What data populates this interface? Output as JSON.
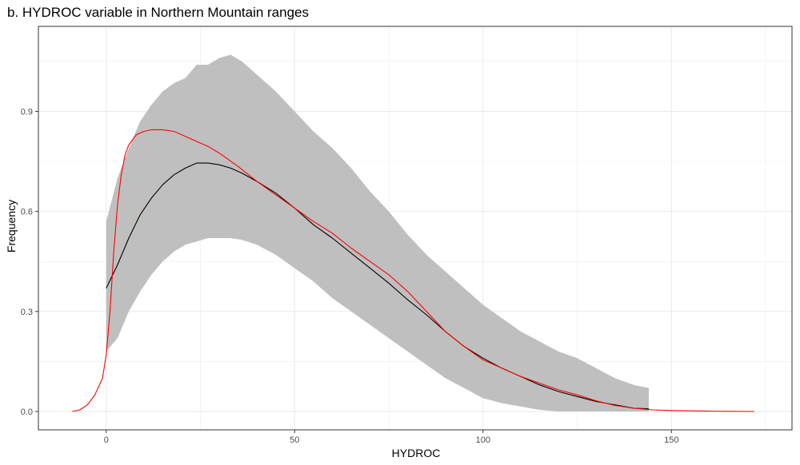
{
  "chart_data": {
    "type": "line",
    "title": "b. HYDROC variable in Northern Mountain ranges",
    "xlabel": "HYDROC",
    "ylabel": "Frequency",
    "xlim": [
      -18,
      182
    ],
    "ylim": [
      -0.055,
      1.155
    ],
    "x_ticks": [
      0,
      50,
      100,
      150
    ],
    "y_ticks": [
      0.0,
      0.3,
      0.6,
      0.9
    ],
    "x_tick_labels": [
      "0",
      "50",
      "100",
      "150"
    ],
    "y_tick_labels": [
      "0.0",
      "0.3",
      "0.6",
      "0.9"
    ],
    "grid": true,
    "colors": {
      "band": "#bfbfbf",
      "mean": "#000000",
      "reference": "#ff0000",
      "grid": "#ebebeb",
      "panel_border": "#333333"
    },
    "band": {
      "x": [
        0,
        3,
        6,
        9,
        12,
        15,
        18,
        21,
        24,
        27,
        30,
        33,
        36,
        40,
        45,
        50,
        55,
        60,
        65,
        70,
        75,
        80,
        85,
        90,
        95,
        100,
        105,
        110,
        115,
        120,
        125,
        130,
        135,
        140,
        144
      ],
      "upper": [
        0.57,
        0.7,
        0.79,
        0.87,
        0.92,
        0.96,
        0.985,
        1.0,
        1.04,
        1.04,
        1.06,
        1.07,
        1.05,
        1.01,
        0.96,
        0.9,
        0.84,
        0.79,
        0.73,
        0.66,
        0.6,
        0.53,
        0.47,
        0.42,
        0.37,
        0.32,
        0.28,
        0.24,
        0.21,
        0.18,
        0.16,
        0.13,
        0.1,
        0.08,
        0.07
      ],
      "lower": [
        0.18,
        0.22,
        0.3,
        0.36,
        0.41,
        0.45,
        0.48,
        0.5,
        0.51,
        0.52,
        0.52,
        0.52,
        0.515,
        0.5,
        0.47,
        0.43,
        0.39,
        0.34,
        0.3,
        0.26,
        0.22,
        0.18,
        0.14,
        0.1,
        0.07,
        0.04,
        0.025,
        0.015,
        0.005,
        0.0,
        0.0,
        0.0,
        0.0,
        0.0,
        0.0
      ]
    },
    "series": [
      {
        "x": [
          0,
          3,
          6,
          9,
          12,
          15,
          18,
          21,
          24,
          27,
          30,
          33,
          36,
          40,
          45,
          50,
          55,
          60,
          65,
          70,
          75,
          80,
          85,
          90,
          95,
          100,
          105,
          110,
          115,
          120,
          125,
          130,
          135,
          140,
          144
        ],
        "y": [
          0.37,
          0.44,
          0.52,
          0.59,
          0.64,
          0.68,
          0.71,
          0.73,
          0.745,
          0.745,
          0.74,
          0.73,
          0.715,
          0.69,
          0.655,
          0.61,
          0.56,
          0.52,
          0.475,
          0.43,
          0.385,
          0.335,
          0.29,
          0.24,
          0.195,
          0.16,
          0.13,
          0.105,
          0.08,
          0.06,
          0.045,
          0.03,
          0.02,
          0.01,
          0.008
        ]
      },
      {
        "x": [
          -9,
          -7,
          -5,
          -3,
          -1,
          0,
          1,
          2,
          3,
          4,
          5,
          6,
          8,
          10,
          12,
          15,
          18,
          21,
          24,
          27,
          30,
          35,
          40,
          45,
          50,
          55,
          60,
          65,
          70,
          75,
          80,
          85,
          90,
          95,
          100,
          105,
          110,
          115,
          120,
          125,
          130,
          135,
          140,
          145,
          150,
          155,
          160,
          165,
          172
        ],
        "y": [
          0.0,
          0.005,
          0.02,
          0.05,
          0.1,
          0.17,
          0.3,
          0.48,
          0.62,
          0.71,
          0.77,
          0.8,
          0.83,
          0.84,
          0.845,
          0.845,
          0.84,
          0.825,
          0.81,
          0.795,
          0.775,
          0.735,
          0.69,
          0.65,
          0.61,
          0.57,
          0.535,
          0.49,
          0.45,
          0.41,
          0.36,
          0.3,
          0.24,
          0.195,
          0.155,
          0.13,
          0.105,
          0.085,
          0.065,
          0.05,
          0.032,
          0.018,
          0.01,
          0.005,
          0.003,
          0.002,
          0.001,
          0.0005,
          0.0
        ]
      }
    ]
  }
}
